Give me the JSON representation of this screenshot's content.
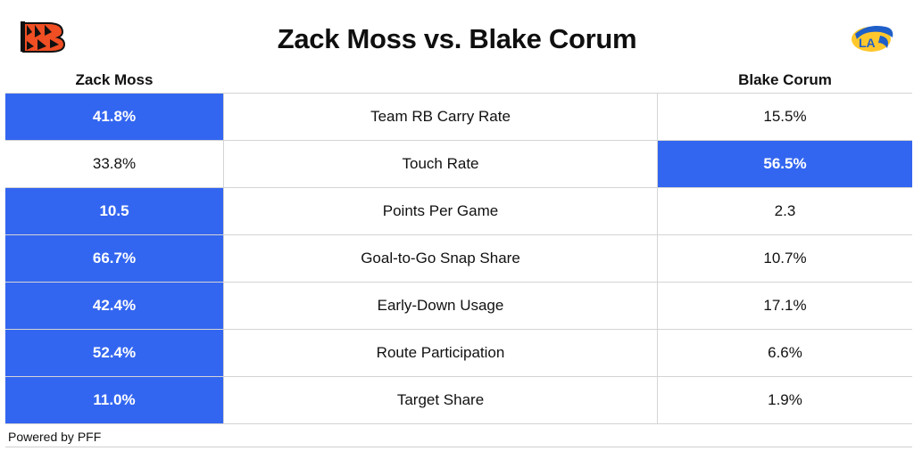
{
  "header": {
    "title": "Zack Moss vs. Blake Corum",
    "left_player": "Zack Moss",
    "right_player": "Blake Corum",
    "left_logo_icon": "bengals-logo-icon",
    "right_logo_icon": "rams-logo-icon"
  },
  "colors": {
    "highlight": "#3366f0",
    "bengals_orange": "#f04e23",
    "rams_blue": "#1f5fc9",
    "rams_yellow": "#ffc72c"
  },
  "rows": [
    {
      "metric": "Team RB Carry Rate",
      "left": "41.8%",
      "right": "15.5%",
      "winner": "left"
    },
    {
      "metric": "Touch Rate",
      "left": "33.8%",
      "right": "56.5%",
      "winner": "right"
    },
    {
      "metric": "Points Per Game",
      "left": "10.5",
      "right": "2.3",
      "winner": "left"
    },
    {
      "metric": "Goal-to-Go Snap Share",
      "left": "66.7%",
      "right": "10.7%",
      "winner": "left"
    },
    {
      "metric": "Early-Down Usage",
      "left": "42.4%",
      "right": "17.1%",
      "winner": "left"
    },
    {
      "metric": "Route Participation",
      "left": "52.4%",
      "right": "6.6%",
      "winner": "left"
    },
    {
      "metric": "Target Share",
      "left": "11.0%",
      "right": "1.9%",
      "winner": "left"
    }
  ],
  "footer": {
    "credit": "Powered by PFF"
  }
}
